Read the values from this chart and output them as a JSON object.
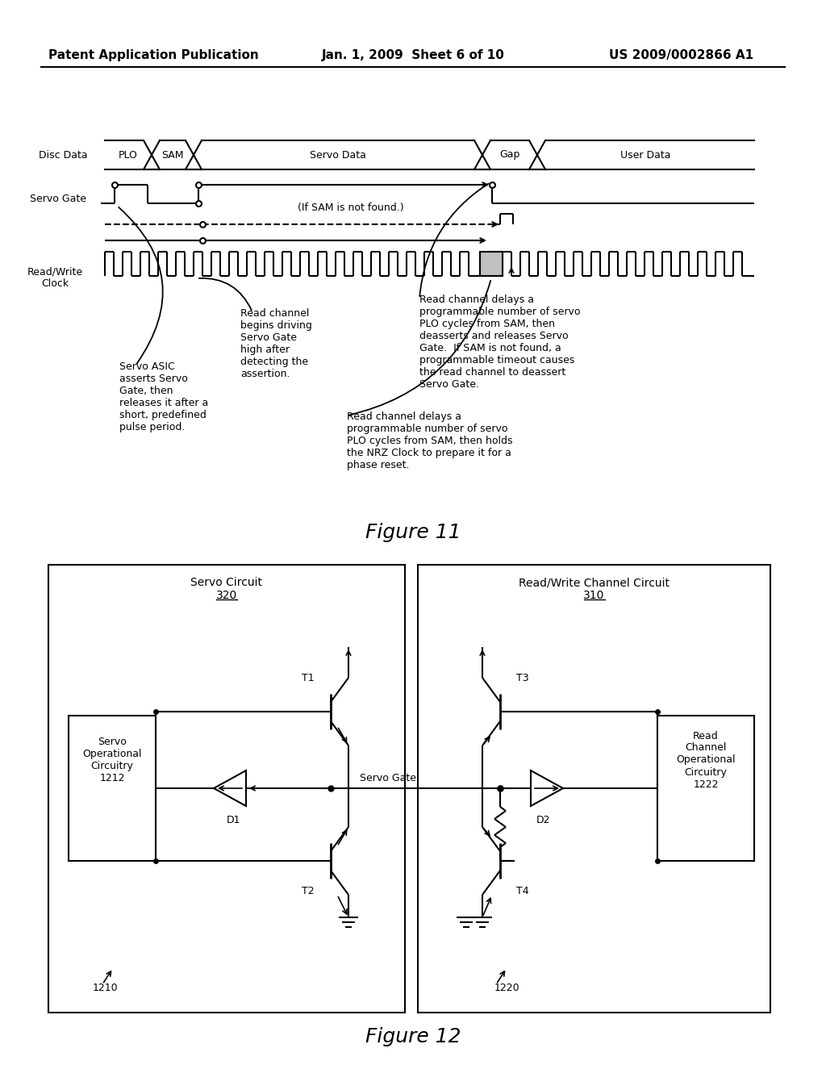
{
  "header_left": "Patent Application Publication",
  "header_mid": "Jan. 1, 2009  Sheet 6 of 10",
  "header_right": "US 2009/0002866 A1",
  "fig11_caption": "Figure 11",
  "fig12_caption": "Figure 12",
  "bg_color": "#ffffff",
  "annotation1": "Read channel\nbegins driving\nServo Gate\nhigh after\ndetecting the\nassertion.",
  "annotation2": "Read channel delays a\nprogrammable number of servo\nPLO cycles from SAM, then\ndeasserts and releases Servo\nGate.  If SAM is not found, a\nprogrammable timeout causes\nthe read channel to deassert\nServo Gate.",
  "annotation3": "Servo ASIC\nasserts Servo\nGate, then\nreleases it after a\nshort, predefined\npulse period.",
  "annotation4": "Read channel delays a\nprogrammable number of servo\nPLO cycles from SAM, then holds\nthe NRZ Clock to prepare it for a\nphase reset.",
  "if_sam_text": "(If SAM is not found.)"
}
